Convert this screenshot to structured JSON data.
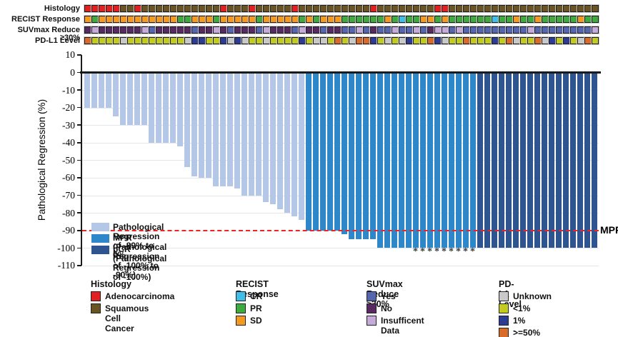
{
  "chart_data": {
    "type": "bar",
    "title": "",
    "ylabel": "Pathological Regression (%)",
    "ylim": [
      -110,
      10
    ],
    "yticks": [
      10,
      0,
      -10,
      -20,
      -30,
      -40,
      -50,
      -60,
      -70,
      -80,
      -90,
      -100,
      -110
    ],
    "grid": "horizontal",
    "n_patients": 72,
    "values": [
      -20,
      -20,
      -20,
      -20,
      -25,
      -30,
      -30,
      -30,
      -30,
      -40,
      -40,
      -40,
      -40,
      -42,
      -54,
      -59,
      -60,
      -60,
      -65,
      -65,
      -65,
      -66,
      -70,
      -70,
      -70,
      -74,
      -75,
      -78,
      -80,
      -82,
      -84,
      -90,
      -90,
      -90,
      -90,
      -90,
      -92,
      -95,
      -95,
      -95,
      -95,
      -100,
      -100,
      -100,
      -100,
      -100,
      -100,
      -100,
      -100,
      -100,
      -100,
      -100,
      -100,
      -100,
      -100,
      -100,
      -100,
      -100,
      -100,
      -100,
      -100,
      -100,
      -100,
      -100,
      -100,
      -100,
      -100,
      -100,
      -100,
      -100,
      -100,
      -100
    ],
    "groups": "LLLLLLLLLLLLLLLLLLLLLLLLLLLLLLLMMMMMMMMMMMMMMMMMMMMMMMMDDDDDDDDDDDDDDDDD",
    "group_colors": {
      "L": "#b4c7e7",
      "M": "#2e87c8",
      "D": "#2f5590"
    },
    "asterisk_cols": [
      47,
      48,
      49,
      50,
      51,
      52,
      53,
      54,
      55
    ],
    "asterisk_mark": "*",
    "reference_line": {
      "value": -90,
      "label": "MPR",
      "color": "#ee2424",
      "style": "dashed"
    }
  },
  "annotation_tracks": {
    "rows": [
      {
        "label": "Histology",
        "palette": "histology",
        "codes": "AAAAASSASSSSSSSSSSSASSSASSSSSASSSSSSSSSSASSSSSSSSAASSSSSSSSSSSSSSSSSSSSS"
      },
      {
        "label": "RECIST Response",
        "palette": "recist",
        "codes": "DPDDDDDDDDDDDPPDDDPDDDDDPDDDDDPDPDDDPPPPPPDPCPPDDPDPPPPPPCPPDPPDPPPPPDPP"
      },
      {
        "label": "SUVmax Reduce ≥30%",
        "palette": "suv",
        "codes": "NINNNNNNIYNNNNNYNNINYNNNYINNNYINNYNNYYIYNYYIYYIYNIIYIYYYYYYYYYIYYYYYYYYI"
      },
      {
        "label": "PD-L1 Level",
        "palette": "pdl1",
        "codes": "HLLLLULLLLLLLLUMMLLMUMULLULLLLMLUULHLUHHMLULUMLLHMULLHLLLMLHULLHUMLMLUHL"
      }
    ],
    "palettes": {
      "histology": {
        "A": "#e32020",
        "S": "#6a5423"
      },
      "recist": {
        "C": "#3fbeea",
        "P": "#3fab3f",
        "D": "#f59a1d"
      },
      "suv": {
        "Y": "#5566ae",
        "N": "#582a62",
        "I": "#c5aada"
      },
      "pdl1": {
        "U": "#c9c9c9",
        "L": "#c3cb1c",
        "M": "#2c3c94",
        "H": "#d96b28"
      }
    }
  },
  "plot_legend": [
    {
      "color": "#b4c7e7",
      "label": "Pathological Regression of -89% to 0%"
    },
    {
      "color": "#2e87c8",
      "label": "MPR (Pathological Regression of -100% to -90%)"
    },
    {
      "color": "#2f5590",
      "label": "pCR (Pathological Regression of -100%)"
    }
  ],
  "bottom_legend": {
    "groups": [
      {
        "header": "Histology",
        "items": [
          {
            "color": "#e32020",
            "label": "Adenocarcinoma"
          },
          {
            "color": "#6a5423",
            "label": "Squamous Cell Cancer"
          }
        ]
      },
      {
        "header": "RECIST Response",
        "items": [
          {
            "color": "#3fbeea",
            "label": "CR"
          },
          {
            "color": "#3fab3f",
            "label": "PR"
          },
          {
            "color": "#f59a1d",
            "label": "SD"
          }
        ]
      },
      {
        "header": "SUVmax Reduce ≥30%",
        "items": [
          {
            "color": "#5566ae",
            "label": "Yes"
          },
          {
            "color": "#582a62",
            "label": "No"
          },
          {
            "color": "#c5aada",
            "label": "Insufficent Data"
          }
        ]
      },
      {
        "header": "PD-L1 Level",
        "items": [
          {
            "color": "#c9c9c9",
            "label": "Unknown"
          },
          {
            "color": "#c3cb1c",
            "label": "<1%"
          },
          {
            "color": "#2c3c94",
            "label": "1% - 49%"
          },
          {
            "color": "#d96b28",
            "label": ">=50%"
          }
        ]
      }
    ]
  }
}
